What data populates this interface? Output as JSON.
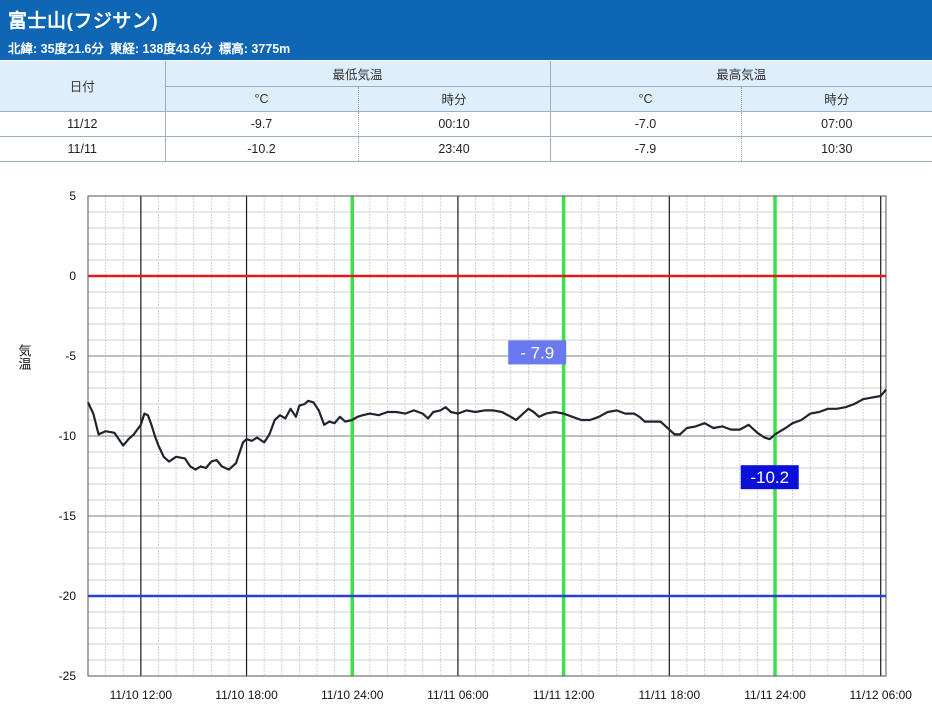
{
  "header": {
    "title": "富士山(フジサン)",
    "latitude": "北緯: 35度21.6分",
    "longitude": "東経: 138度43.6分",
    "elevation": "標高: 3775m"
  },
  "summary": {
    "date_header": "日付",
    "min_header": "最低気温",
    "max_header": "最高気温",
    "unit_c": "°C",
    "unit_time": "時分",
    "rows": [
      {
        "date": "11/12",
        "min": "-9.7",
        "min_time": "00:10",
        "max": "-7.0",
        "max_time": "07:00"
      },
      {
        "date": "11/11",
        "min": "-10.2",
        "min_time": "23:40",
        "max": "-7.9",
        "max_time": "10:30"
      }
    ]
  },
  "chart_data": {
    "type": "line",
    "ylabel": "気温",
    "ylim": [
      -25,
      5
    ],
    "yticks": [
      5,
      0,
      -5,
      -10,
      -15,
      -20,
      -25
    ],
    "xlim": [
      9.0,
      54.3
    ],
    "xticks": [
      {
        "h": 12,
        "label": "11/10 12:00"
      },
      {
        "h": 18,
        "label": "11/10 18:00"
      },
      {
        "h": 24,
        "label": "11/10 24:00"
      },
      {
        "h": 30,
        "label": "11/11 06:00"
      },
      {
        "h": 36,
        "label": "11/11 12:00"
      },
      {
        "h": 42,
        "label": "11/11 18:00"
      },
      {
        "h": 48,
        "label": "11/11 24:00"
      },
      {
        "h": 54,
        "label": "11/12 06:00"
      }
    ],
    "reference_lines": [
      {
        "value": 0,
        "color": "#e11b1b"
      },
      {
        "value": -20,
        "color": "#2b3fd1"
      }
    ],
    "day_boundaries": [
      24,
      36,
      48
    ],
    "grid": true,
    "annotations": [
      {
        "label": "- 7.9",
        "h": 34.5,
        "value": -7.9,
        "bg": "#6a79f0"
      },
      {
        "label": "-10.2",
        "h": 47.7,
        "value": -10.2,
        "bg": "#0a10d8"
      }
    ],
    "series": [
      {
        "color": "#1e2530",
        "x": [
          9.0,
          9.3,
          9.6,
          10.0,
          10.5,
          11.0,
          11.3,
          11.6,
          12.0,
          12.2,
          12.4,
          12.6,
          12.8,
          13.0,
          13.3,
          13.6,
          14.0,
          14.5,
          14.8,
          15.1,
          15.4,
          15.7,
          16.0,
          16.3,
          16.6,
          17.0,
          17.4,
          17.8,
          18.0,
          18.3,
          18.6,
          19.0,
          19.3,
          19.6,
          19.9,
          20.2,
          20.5,
          20.8,
          21.0,
          21.3,
          21.5,
          21.8,
          22.1,
          22.4,
          22.7,
          23.0,
          23.3,
          23.6,
          24.0,
          24.3,
          24.6,
          25.0,
          25.5,
          26.0,
          26.5,
          27.0,
          27.5,
          28.0,
          28.3,
          28.6,
          29.0,
          29.3,
          29.6,
          30.0,
          30.5,
          31.0,
          31.5,
          32.0,
          32.5,
          33.0,
          33.3,
          33.6,
          34.0,
          34.3,
          34.6,
          35.0,
          35.5,
          36.0,
          36.5,
          37.0,
          37.5,
          38.0,
          38.5,
          39.0,
          39.5,
          40.0,
          40.3,
          40.6,
          41.0,
          41.5,
          42.0,
          42.3,
          42.6,
          43.0,
          43.5,
          44.0,
          44.5,
          45.0,
          45.5,
          46.0,
          46.5,
          47.0,
          47.4,
          47.7,
          48.0,
          48.3,
          48.6,
          49.0,
          49.5,
          50.0,
          50.5,
          51.0,
          51.5,
          52.0,
          52.5,
          53.0,
          53.5,
          54.0,
          54.3
        ],
        "values": [
          -7.9,
          -8.6,
          -9.9,
          -9.7,
          -9.8,
          -10.6,
          -10.2,
          -9.9,
          -9.3,
          -8.6,
          -8.7,
          -9.3,
          -10.0,
          -10.6,
          -11.3,
          -11.6,
          -11.3,
          -11.4,
          -11.9,
          -12.1,
          -11.9,
          -12.0,
          -11.6,
          -11.5,
          -11.9,
          -12.1,
          -11.7,
          -10.4,
          -10.2,
          -10.3,
          -10.1,
          -10.4,
          -9.9,
          -9.0,
          -8.7,
          -8.9,
          -8.3,
          -8.8,
          -8.1,
          -8.0,
          -7.8,
          -7.9,
          -8.4,
          -9.3,
          -9.1,
          -9.2,
          -8.8,
          -9.1,
          -9.0,
          -8.8,
          -8.7,
          -8.6,
          -8.7,
          -8.5,
          -8.5,
          -8.6,
          -8.4,
          -8.6,
          -8.9,
          -8.5,
          -8.4,
          -8.2,
          -8.5,
          -8.6,
          -8.4,
          -8.5,
          -8.4,
          -8.4,
          -8.5,
          -8.8,
          -9.0,
          -8.7,
          -8.3,
          -8.5,
          -8.8,
          -8.6,
          -8.5,
          -8.6,
          -8.8,
          -9.0,
          -9.0,
          -8.8,
          -8.5,
          -8.4,
          -8.6,
          -8.6,
          -8.8,
          -9.1,
          -9.1,
          -9.1,
          -9.6,
          -9.9,
          -9.9,
          -9.5,
          -9.4,
          -9.2,
          -9.5,
          -9.4,
          -9.6,
          -9.6,
          -9.3,
          -9.8,
          -10.1,
          -10.2,
          -9.9,
          -9.7,
          -9.5,
          -9.2,
          -9.0,
          -8.6,
          -8.5,
          -8.3,
          -8.3,
          -8.2,
          -8.0,
          -7.7,
          -7.6,
          -7.5,
          -7.1
        ]
      }
    ]
  }
}
